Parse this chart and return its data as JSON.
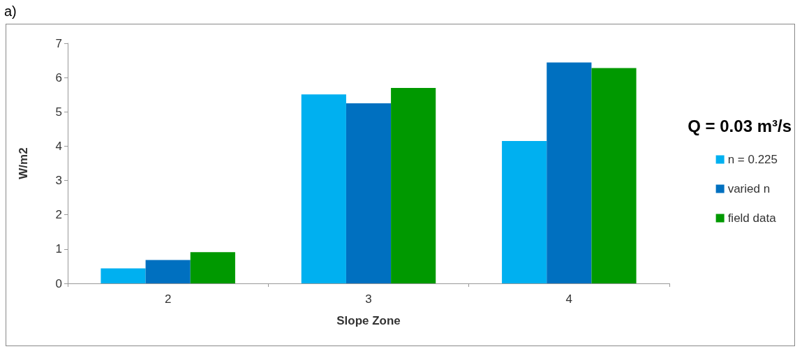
{
  "chart_data": {
    "type": "bar",
    "xlabel": "Slope Zone",
    "ylabel": "W/m2",
    "categories": [
      "2",
      "3",
      "4"
    ],
    "series": [
      {
        "name": "n = 0.225",
        "color": "#00b0f0",
        "values": [
          0.44,
          5.51,
          4.15
        ]
      },
      {
        "name": "varied n",
        "color": "#0070c0",
        "values": [
          0.68,
          5.25,
          6.44
        ]
      },
      {
        "name": "field data",
        "color": "#009900",
        "values": [
          0.91,
          5.7,
          6.28
        ]
      }
    ],
    "ylim": [
      0,
      7
    ],
    "yticks": [
      0,
      1,
      2,
      3,
      4,
      5,
      6,
      7
    ],
    "grid": false,
    "legend": "right",
    "annotations": [
      "a)",
      "Q = 0.03 m³/s"
    ]
  }
}
